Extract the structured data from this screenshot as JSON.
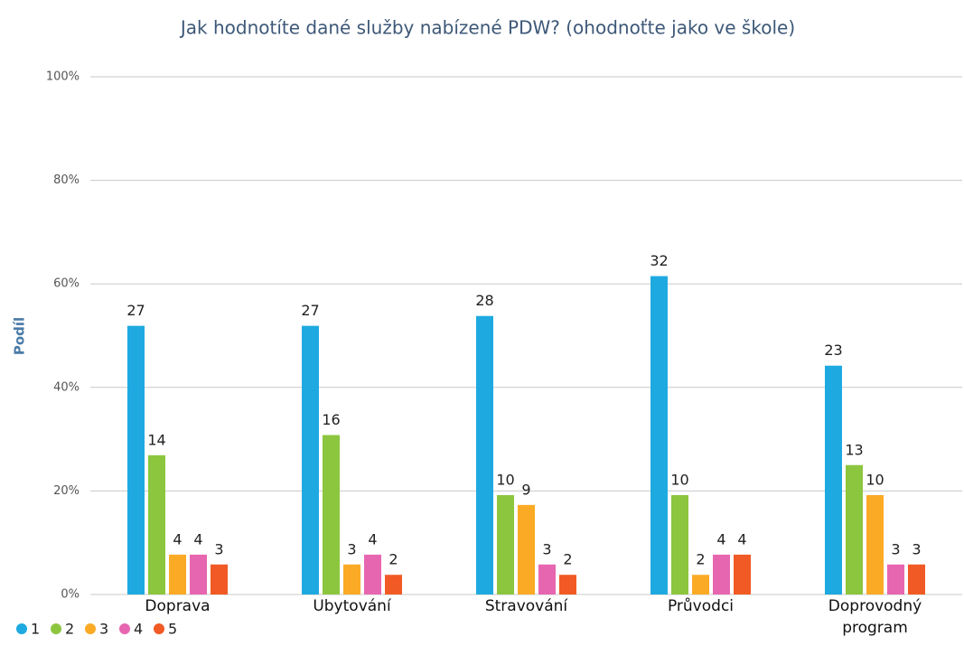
{
  "chart_data": {
    "type": "bar",
    "title": "Jak hodnotíte dané služby nabízené PDW? (ohodnoťte jako ve škole)",
    "y_label": "Podíl",
    "categories": [
      "Doprava",
      "Ubytování",
      "Stravování",
      "Průvodci",
      "Doprovodný program"
    ],
    "series": [
      {
        "name": "1",
        "color": "#1eaae1",
        "values": [
          51.9,
          51.9,
          53.8,
          61.5,
          44.2
        ],
        "counts": [
          27,
          27,
          28,
          32,
          23
        ]
      },
      {
        "name": "2",
        "color": "#8cc63f",
        "values": [
          26.9,
          30.8,
          19.2,
          19.2,
          25.0
        ],
        "counts": [
          14,
          16,
          10,
          10,
          13
        ]
      },
      {
        "name": "3",
        "color": "#fbaa26",
        "values": [
          7.7,
          5.8,
          17.3,
          3.8,
          19.2
        ],
        "counts": [
          4,
          3,
          9,
          2,
          10
        ]
      },
      {
        "name": "4",
        "color": "#e766b0",
        "values": [
          7.7,
          7.7,
          5.8,
          7.7,
          5.8
        ],
        "counts": [
          4,
          4,
          3,
          4,
          3
        ]
      },
      {
        "name": "5",
        "color": "#f15a24",
        "values": [
          5.8,
          3.8,
          3.8,
          7.7,
          5.8
        ],
        "counts": [
          3,
          2,
          2,
          4,
          3
        ]
      }
    ],
    "ylim": [
      0,
      100
    ],
    "yticks": [
      {
        "value": 0,
        "label": "0%"
      },
      {
        "value": 20,
        "label": "20%"
      },
      {
        "value": 40,
        "label": "40%"
      },
      {
        "value": 60,
        "label": "60%"
      },
      {
        "value": 80,
        "label": "80%"
      },
      {
        "value": 100,
        "label": "100%"
      }
    ],
    "grid": true,
    "legend": "bottom-left"
  }
}
